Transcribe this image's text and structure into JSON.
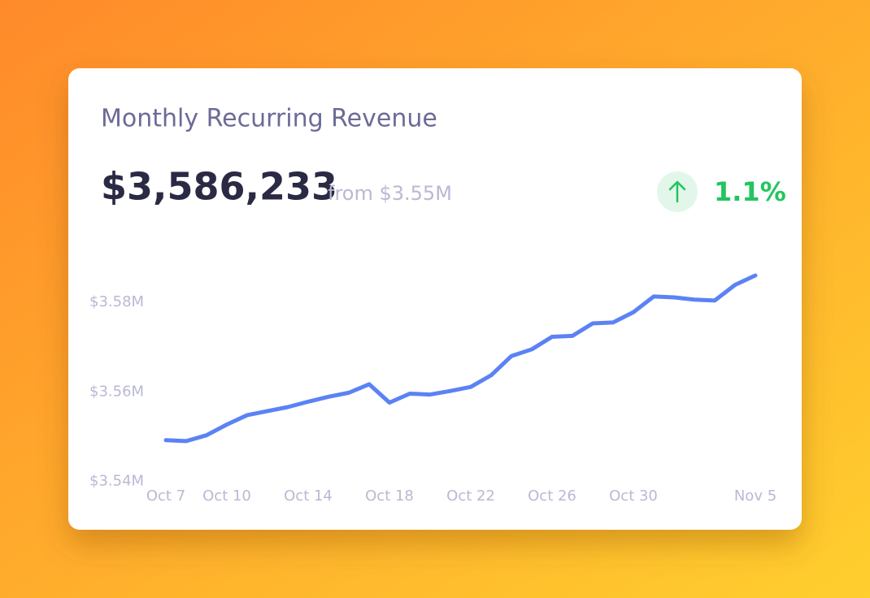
{
  "chart_data": {
    "type": "line",
    "title": "Monthly Recurring Revenue",
    "headline": "$3,586,233",
    "comparison": "from $3.55M",
    "change": "1.1%",
    "categories": [
      "Oct 7",
      null,
      null,
      "Oct 10",
      null,
      null,
      null,
      "Oct 14",
      null,
      null,
      null,
      "Oct 18",
      null,
      null,
      null,
      "Oct 22",
      null,
      null,
      null,
      "Oct 26",
      null,
      null,
      null,
      "Oct 30",
      null,
      null,
      null,
      null,
      null,
      "Nov 5"
    ],
    "series": [
      {
        "color": "#5b82f5",
        "values": [
          3549200,
          3549000,
          3550300,
          3552700,
          3554800,
          3555700,
          3556600,
          3557800,
          3558900,
          3559800,
          3561700,
          3557600,
          3559600,
          3559400,
          3560200,
          3561100,
          3563700,
          3568000,
          3569500,
          3572300,
          3572500,
          3575300,
          3575500,
          3577800,
          3581300,
          3581100,
          3580600,
          3580400,
          3583900,
          3586000
        ]
      }
    ],
    "ylim": [
      3535000,
      3590000
    ],
    "yticks": [
      {
        "value": 3540000,
        "label": "$3.54M"
      },
      {
        "value": 3560000,
        "label": "$3.56M"
      },
      {
        "value": 3580000,
        "label": "$3.58M"
      }
    ],
    "grid": false
  }
}
